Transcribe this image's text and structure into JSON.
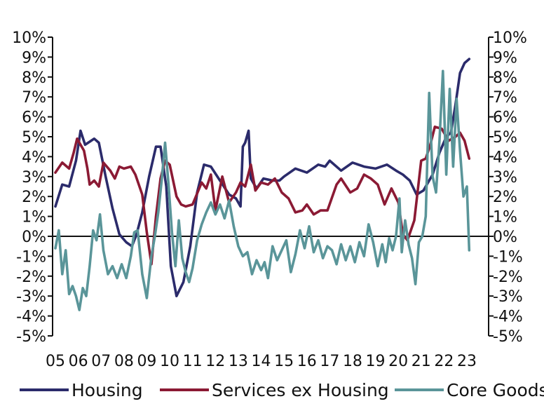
{
  "chart_data": {
    "type": "line",
    "title": "",
    "xlabel": "",
    "ylabel": "",
    "ylim": [
      -5,
      10
    ],
    "y_ticks": [
      10,
      9,
      8,
      7,
      6,
      5,
      4,
      3,
      2,
      1,
      0,
      -1,
      -2,
      -3,
      -4,
      -5
    ],
    "y_tick_labels": [
      "10%",
      "9%",
      "8%",
      "7%",
      "6%",
      "5%",
      "4%",
      "3%",
      "2%",
      "1%",
      "0%",
      "-1%",
      "-2%",
      "-3%",
      "-4%",
      "-5%"
    ],
    "x_range": [
      2005,
      2023.1
    ],
    "x_ticks": [
      2005,
      2006,
      2007,
      2008,
      2009,
      2010,
      2011,
      2012,
      2013,
      2014,
      2015,
      2016,
      2017,
      2018,
      2019,
      2020,
      2021,
      2022,
      2023
    ],
    "x_tick_labels": [
      "05",
      "06",
      "07",
      "08",
      "09",
      "10",
      "11",
      "12",
      "13",
      "14",
      "15",
      "16",
      "17",
      "18",
      "19",
      "20",
      "21",
      "22",
      "23"
    ],
    "legend_position": "bottom",
    "series": [
      {
        "name": "Housing",
        "color": "#2b2b6b",
        "x": [
          2005.0,
          2005.3,
          2005.6,
          2005.9,
          2006.1,
          2006.3,
          2006.7,
          2006.9,
          2007.2,
          2007.5,
          2007.8,
          2008.1,
          2008.35,
          2008.55,
          2008.8,
          2009.1,
          2009.4,
          2009.6,
          2009.85,
          2010.05,
          2010.3,
          2010.6,
          2010.9,
          2011.2,
          2011.5,
          2011.8,
          2012.2,
          2012.6,
          2012.9,
          2013.1,
          2013.2,
          2013.3,
          2013.45,
          2013.55,
          2013.8,
          2014.1,
          2014.5,
          2014.8,
          2015.0,
          2015.5,
          2016.0,
          2016.5,
          2016.8,
          2017.0,
          2017.5,
          2018.0,
          2018.5,
          2019.0,
          2019.5,
          2019.9,
          2020.2,
          2020.5,
          2020.8,
          2021.1,
          2021.5,
          2021.8,
          2022.1,
          2022.3,
          2022.5,
          2022.7,
          2022.9,
          2023.1
        ],
        "values": [
          1.5,
          2.6,
          2.5,
          3.8,
          5.3,
          4.6,
          4.9,
          4.7,
          3.0,
          1.4,
          0.1,
          -0.3,
          -0.5,
          0.1,
          1.2,
          3.0,
          4.5,
          4.5,
          2.5,
          -1.5,
          -3.0,
          -2.3,
          -0.5,
          2.2,
          3.6,
          3.5,
          2.8,
          2.1,
          1.9,
          1.5,
          4.5,
          4.7,
          5.3,
          2.9,
          2.4,
          2.9,
          2.8,
          2.8,
          3.0,
          3.4,
          3.2,
          3.6,
          3.5,
          3.8,
          3.3,
          3.7,
          3.5,
          3.4,
          3.6,
          3.3,
          3.1,
          2.8,
          2.1,
          2.3,
          3.1,
          4.2,
          5.0,
          5.2,
          6.6,
          8.2,
          8.7,
          8.9
        ]
      },
      {
        "name": "Services ex Housing",
        "color": "#8b1a34",
        "x": [
          2005.0,
          2005.3,
          2005.6,
          2005.8,
          2005.95,
          2006.1,
          2006.25,
          2006.4,
          2006.5,
          2006.7,
          2006.9,
          2007.1,
          2007.4,
          2007.6,
          2007.8,
          2008.0,
          2008.3,
          2008.5,
          2008.8,
          2009.0,
          2009.2,
          2009.4,
          2009.6,
          2009.8,
          2010.0,
          2010.3,
          2010.5,
          2010.7,
          2011.0,
          2011.4,
          2011.6,
          2011.8,
          2012.0,
          2012.3,
          2012.6,
          2012.9,
          2013.1,
          2013.3,
          2013.55,
          2013.75,
          2014.0,
          2014.3,
          2014.6,
          2014.9,
          2015.2,
          2015.5,
          2015.8,
          2016.0,
          2016.3,
          2016.6,
          2016.9,
          2017.3,
          2017.5,
          2017.9,
          2018.2,
          2018.5,
          2018.8,
          2019.1,
          2019.4,
          2019.7,
          2020.0,
          2020.2,
          2020.4,
          2020.55,
          2020.7,
          2021.0,
          2021.2,
          2021.4,
          2021.6,
          2021.9,
          2022.2,
          2022.5,
          2022.7,
          2022.9,
          2023.1
        ],
        "values": [
          3.2,
          3.7,
          3.4,
          4.2,
          4.9,
          4.6,
          4.3,
          3.4,
          2.6,
          2.8,
          2.5,
          3.7,
          3.3,
          2.9,
          3.5,
          3.4,
          3.5,
          3.1,
          2.1,
          0.2,
          -1.4,
          1.0,
          2.9,
          3.8,
          3.6,
          2.0,
          1.6,
          1.5,
          1.6,
          2.7,
          2.4,
          3.1,
          1.3,
          3.0,
          1.7,
          2.2,
          2.7,
          2.5,
          3.6,
          2.3,
          2.7,
          2.6,
          2.9,
          2.2,
          1.9,
          1.2,
          1.3,
          1.6,
          1.1,
          1.3,
          1.3,
          2.6,
          2.9,
          2.2,
          2.4,
          3.1,
          2.9,
          2.6,
          1.6,
          2.4,
          1.7,
          0.1,
          -0.2,
          0.3,
          0.8,
          3.8,
          3.9,
          4.6,
          5.5,
          5.4,
          4.8,
          5.0,
          5.2,
          4.8,
          3.9
        ]
      },
      {
        "name": "Core Goods",
        "color": "#5a9599",
        "x": [
          2005.0,
          2005.15,
          2005.3,
          2005.45,
          2005.6,
          2005.75,
          2005.9,
          2006.05,
          2006.2,
          2006.35,
          2006.5,
          2006.65,
          2006.8,
          2006.95,
          2007.1,
          2007.3,
          2007.5,
          2007.7,
          2007.9,
          2008.1,
          2008.3,
          2008.45,
          2008.6,
          2008.8,
          2009.0,
          2009.2,
          2009.35,
          2009.5,
          2009.65,
          2009.8,
          2009.95,
          2010.1,
          2010.25,
          2010.4,
          2010.55,
          2010.7,
          2010.85,
          2011.0,
          2011.2,
          2011.4,
          2011.6,
          2011.8,
          2012.0,
          2012.2,
          2012.4,
          2012.6,
          2012.8,
          2013.0,
          2013.2,
          2013.4,
          2013.6,
          2013.8,
          2014.0,
          2014.15,
          2014.3,
          2014.5,
          2014.7,
          2014.9,
          2015.1,
          2015.3,
          2015.5,
          2015.7,
          2015.9,
          2016.1,
          2016.3,
          2016.5,
          2016.7,
          2016.9,
          2017.1,
          2017.3,
          2017.5,
          2017.7,
          2017.9,
          2018.1,
          2018.3,
          2018.5,
          2018.7,
          2018.9,
          2019.1,
          2019.3,
          2019.45,
          2019.6,
          2019.75,
          2019.9,
          2020.05,
          2020.15,
          2020.3,
          2020.45,
          2020.6,
          2020.75,
          2020.9,
          2021.05,
          2021.2,
          2021.35,
          2021.5,
          2021.65,
          2021.8,
          2021.95,
          2022.1,
          2022.25,
          2022.4,
          2022.55,
          2022.7,
          2022.85,
          2023.0,
          2023.1
        ],
        "values": [
          -0.6,
          0.3,
          -1.9,
          -0.7,
          -2.9,
          -2.5,
          -3.0,
          -3.7,
          -2.6,
          -3.0,
          -1.5,
          0.3,
          -0.2,
          1.1,
          -0.7,
          -1.9,
          -1.5,
          -2.1,
          -1.4,
          -2.1,
          -1.0,
          0.2,
          0.3,
          -1.9,
          -3.1,
          -1.0,
          0.0,
          1.2,
          2.8,
          4.7,
          2.6,
          0.2,
          -1.5,
          0.8,
          -1.1,
          -1.8,
          -2.3,
          -1.6,
          -0.2,
          0.6,
          1.2,
          1.7,
          1.1,
          1.6,
          0.9,
          1.8,
          0.5,
          -0.5,
          -1.0,
          -0.8,
          -1.9,
          -1.2,
          -1.7,
          -1.3,
          -2.1,
          -0.5,
          -1.2,
          -0.7,
          -0.2,
          -1.8,
          -0.9,
          0.3,
          -0.6,
          0.5,
          -0.8,
          -0.2,
          -1.1,
          -0.5,
          -0.7,
          -1.4,
          -0.4,
          -1.2,
          -0.5,
          -1.3,
          -0.3,
          -1.0,
          0.6,
          -0.3,
          -1.5,
          -0.4,
          -1.3,
          -0.1,
          -0.7,
          0.0,
          1.9,
          -0.8,
          0.8,
          -0.4,
          -1.1,
          -2.4,
          -0.3,
          0.0,
          1.0,
          7.2,
          3.0,
          2.2,
          4.8,
          8.3,
          3.1,
          7.4,
          3.5,
          6.9,
          4.3,
          2.0,
          2.5,
          -0.7
        ]
      }
    ]
  }
}
